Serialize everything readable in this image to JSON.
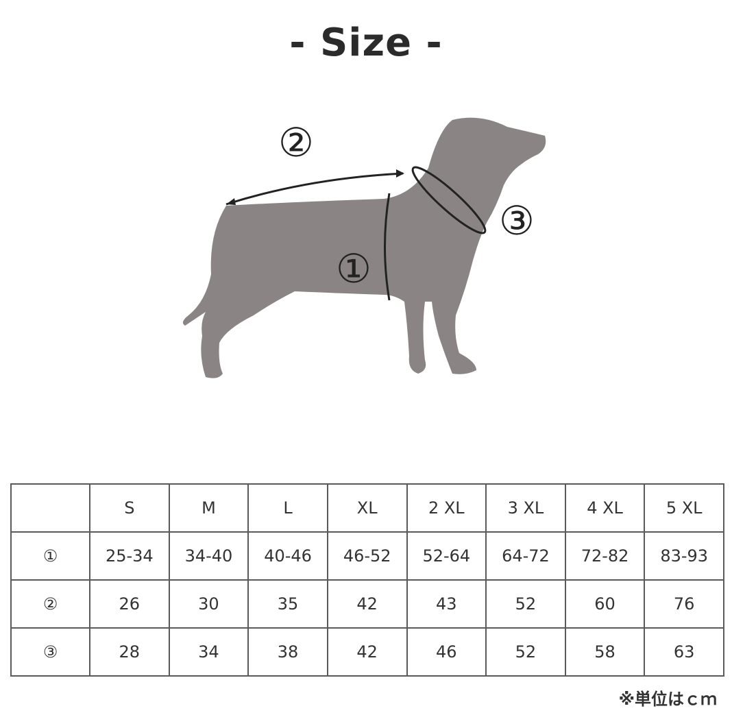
{
  "title": "- Size -",
  "diagram": {
    "labels": [
      "①",
      "②",
      "③"
    ],
    "dog_color": "#8a8584"
  },
  "table": {
    "columns": [
      "",
      "S",
      "M",
      "L",
      "XL",
      "2 XL",
      "3 XL",
      "4 XL",
      "5 XL"
    ],
    "rows": [
      {
        "label": "①",
        "values": [
          "25-34",
          "34-40",
          "40-46",
          "46-52",
          "52-64",
          "64-72",
          "72-82",
          "83-93"
        ]
      },
      {
        "label": "②",
        "values": [
          "26",
          "30",
          "35",
          "42",
          "43",
          "52",
          "60",
          "76"
        ]
      },
      {
        "label": "③",
        "values": [
          "28",
          "34",
          "38",
          "42",
          "46",
          "52",
          "58",
          "63"
        ]
      }
    ]
  },
  "unit_note": "※単位はｃｍ"
}
